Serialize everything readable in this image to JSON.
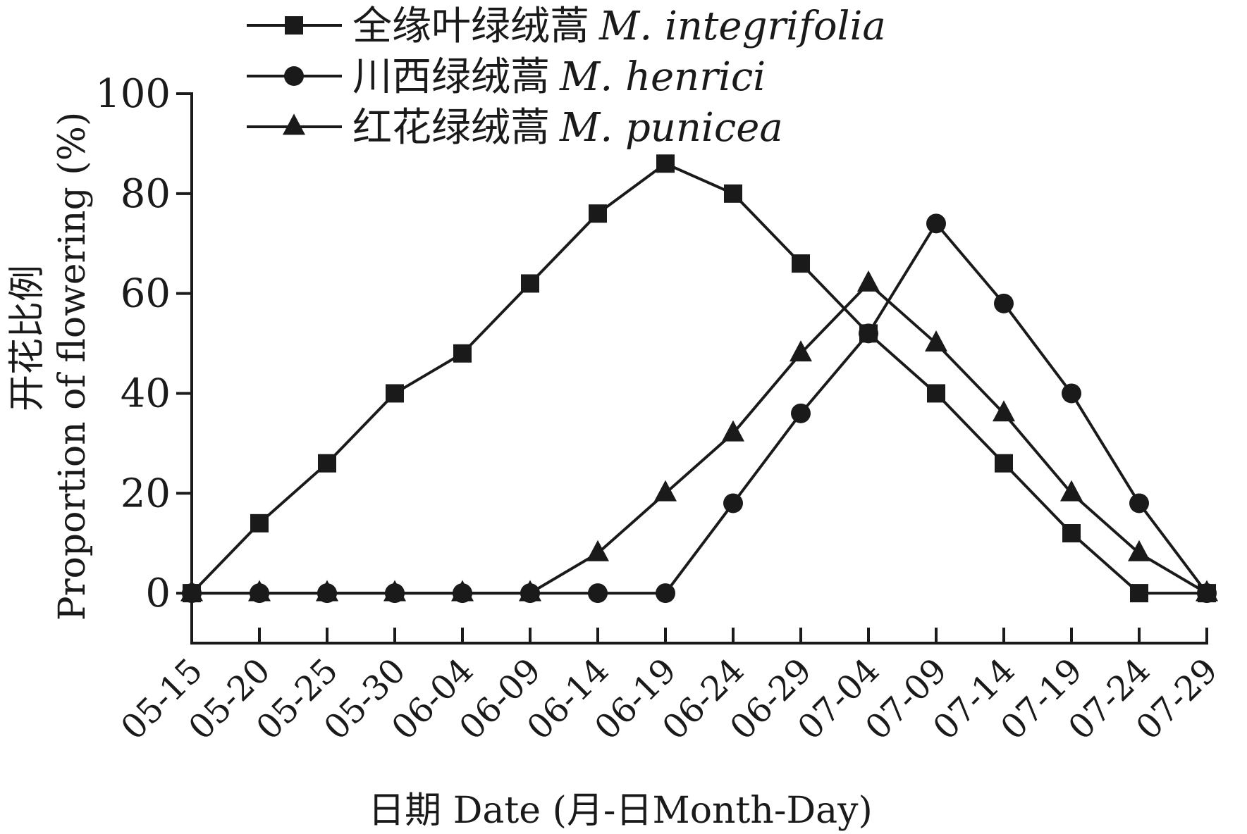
{
  "chart_data": {
    "type": "line",
    "xlabel": "日期 Date (月-日Month-Day)",
    "ylabel_cn": "开花比例",
    "ylabel_en": "Proportion of flowering (%)",
    "ylim": [
      -10,
      100
    ],
    "yticks": [
      0,
      20,
      40,
      60,
      80,
      100
    ],
    "grid": false,
    "legend_position": "top-left",
    "categories": [
      "05-15",
      "05-20",
      "05-25",
      "05-30",
      "06-04",
      "06-09",
      "06-14",
      "06-19",
      "06-24",
      "06-29",
      "07-04",
      "07-09",
      "07-14",
      "07-19",
      "07-24",
      "07-29"
    ],
    "series": [
      {
        "name": "全缘叶绿绒蒿 M. integrifolia",
        "name_cn": "全缘叶绿绒蒿",
        "name_latin": "M. integrifolia",
        "marker": "square",
        "values": [
          0,
          14,
          26,
          40,
          48,
          62,
          76,
          86,
          80,
          66,
          52,
          40,
          26,
          12,
          0,
          0
        ]
      },
      {
        "name": "川西绿绒蒿 M. henrici",
        "name_cn": "川西绿绒蒿",
        "name_latin": "M. henrici",
        "marker": "circle",
        "values": [
          0,
          0,
          0,
          0,
          0,
          0,
          0,
          0,
          18,
          36,
          52,
          74,
          58,
          40,
          18,
          0
        ]
      },
      {
        "name": "红花绿绒蒿 M. punicea",
        "name_cn": "红花绿绒蒿",
        "name_latin": "M. punicea",
        "marker": "triangle",
        "values": [
          0,
          0,
          0,
          0,
          0,
          0,
          8,
          20,
          32,
          48,
          62,
          50,
          36,
          20,
          8,
          0
        ]
      }
    ]
  },
  "colors": {
    "ink": "#1a1a1a",
    "background": "#ffffff"
  }
}
